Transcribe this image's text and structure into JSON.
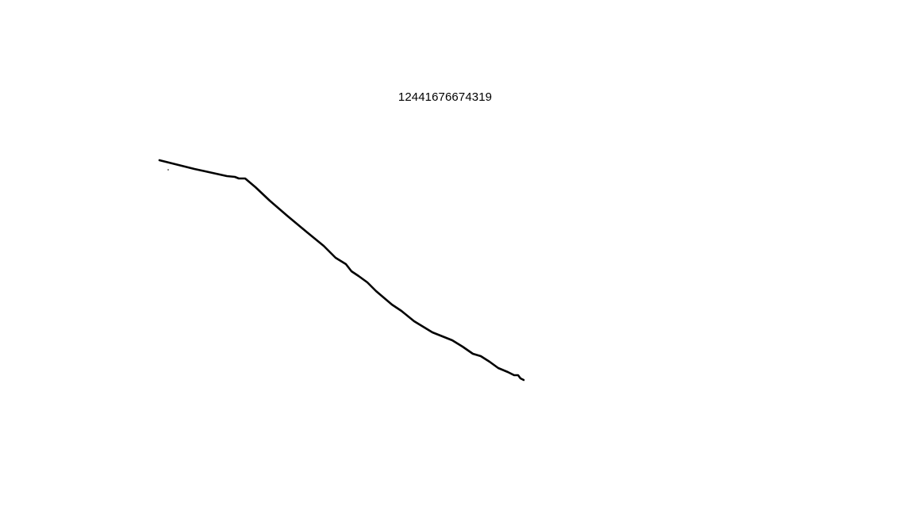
{
  "caption": {
    "text": "12441676674319"
  },
  "stroke": {
    "color": "#000000"
  }
}
